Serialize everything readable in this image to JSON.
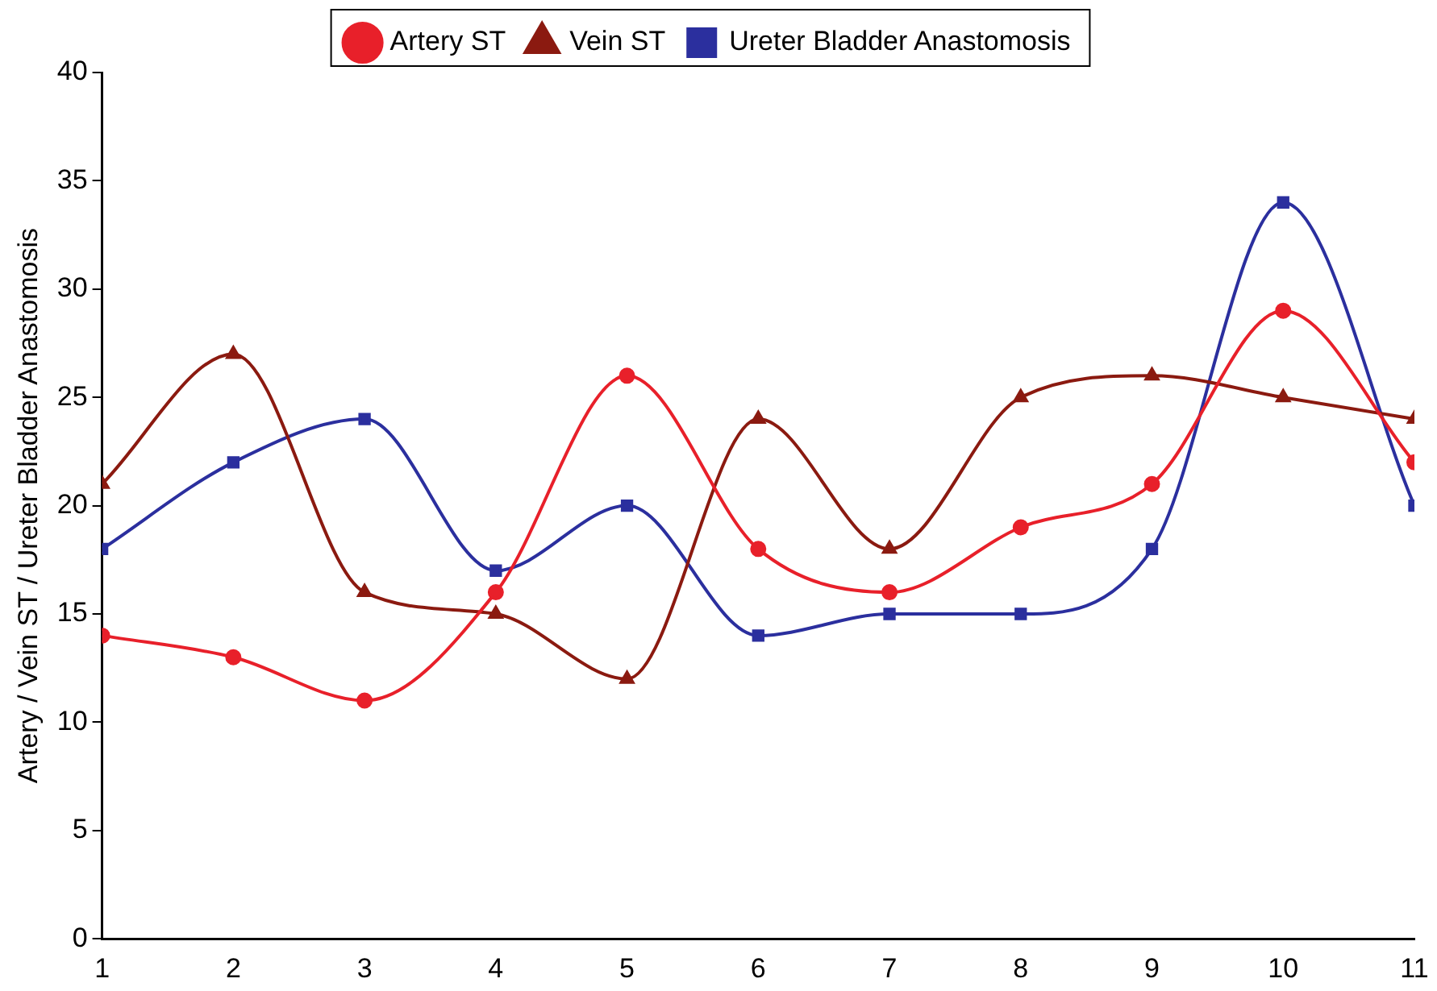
{
  "chart_data": {
    "type": "line",
    "ylabel": "Artery / Vein ST / Ureter Bladder Anastomosis",
    "x": [
      1,
      2,
      3,
      4,
      5,
      6,
      7,
      8,
      9,
      10,
      11
    ],
    "xlim": [
      1,
      11
    ],
    "xticks": [
      1,
      2,
      3,
      4,
      5,
      6,
      7,
      8,
      9,
      10,
      11
    ],
    "ylim": [
      0,
      40
    ],
    "yticks": [
      0,
      5,
      10,
      15,
      20,
      25,
      30,
      35,
      40
    ],
    "grid": false,
    "legend": "top",
    "series": [
      {
        "name": "Artery ST",
        "color": "#e8202a",
        "marker": "circle",
        "values": [
          14,
          13,
          11,
          16,
          26,
          18,
          16,
          19,
          21,
          29,
          22
        ]
      },
      {
        "name": "Vein ST",
        "color": "#8b1a10",
        "marker": "triangle",
        "values": [
          21,
          27,
          16,
          15,
          12,
          24,
          18,
          25,
          26,
          25,
          24
        ]
      },
      {
        "name": "Ureter Bladder Anastomosis",
        "color": "#2b2f9e",
        "marker": "square",
        "values": [
          18,
          22,
          24,
          17,
          20,
          14,
          15,
          15,
          18,
          34,
          20
        ]
      }
    ]
  }
}
